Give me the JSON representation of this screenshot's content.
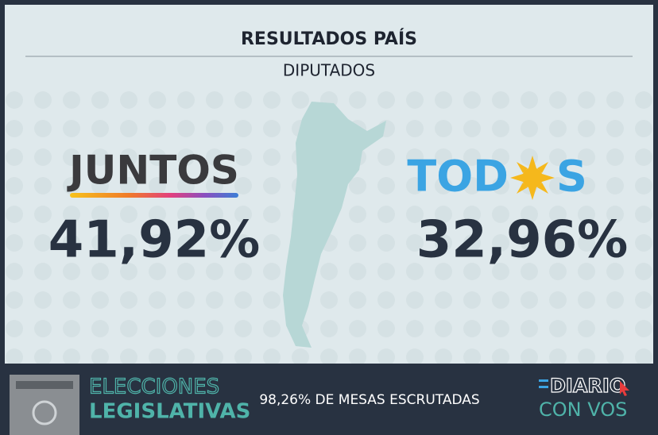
{
  "header": {
    "title": "RESULTADOS PAÍS",
    "subtitle": "DIPUTADOS"
  },
  "parties": [
    {
      "name": "JUNTOS",
      "result": "41,92%"
    },
    {
      "name_parts": [
        "TOD",
        "S"
      ],
      "result": "32,96%"
    }
  ],
  "footer": {
    "brand_line1": "ELECCIONES",
    "brand_line2": "LEGISLATIVAS",
    "status": "98,26% DE MESAS ESCRUTADAS",
    "logo_line1": "DIARIO",
    "logo_line2": "CON VOS"
  }
}
